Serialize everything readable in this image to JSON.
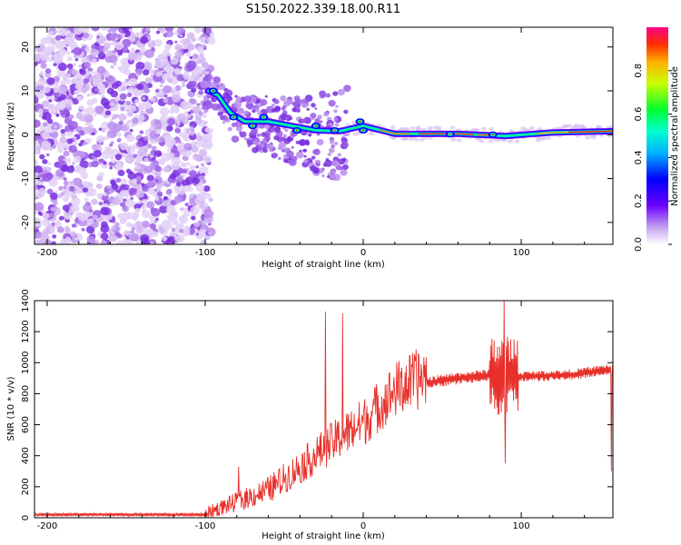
{
  "title": "S150.2022.339.18.00.R11",
  "colors": {
    "snr_line": "#e8302a",
    "scatter_base": "#7a2fe0"
  },
  "chart_data": [
    {
      "type": "heatmap",
      "xlabel": "Height of straight line (km)",
      "ylabel": "Frequency (Hz)",
      "xlim": [
        -208,
        158
      ],
      "ylim": [
        -25,
        24.5
      ],
      "xticks": [
        -200,
        -100,
        0,
        100
      ],
      "yticks": [
        -20,
        -10,
        0,
        10,
        20
      ],
      "colorbar": {
        "label": "Normalized spectral amplitude",
        "range": [
          0,
          1
        ],
        "ticks": [
          "0.0",
          "0.2",
          "0.4",
          "0.6",
          "0.8"
        ],
        "colormap": "rainbow"
      },
      "ridge": [
        {
          "x": -98,
          "y": 10
        },
        {
          "x": -92,
          "y": 9
        },
        {
          "x": -84,
          "y": 5
        },
        {
          "x": -75,
          "y": 3
        },
        {
          "x": -60,
          "y": 3
        },
        {
          "x": -45,
          "y": 2
        },
        {
          "x": -30,
          "y": 1
        },
        {
          "x": -15,
          "y": 0.8
        },
        {
          "x": 0,
          "y": 2
        },
        {
          "x": 20,
          "y": 0.2
        },
        {
          "x": 60,
          "y": 0.2
        },
        {
          "x": 90,
          "y": -0.3
        },
        {
          "x": 120,
          "y": 0.5
        },
        {
          "x": 158,
          "y": 0.8
        }
      ]
    },
    {
      "type": "line",
      "xlabel": "Height of straight line (km)",
      "ylabel": "SNR (10 * v/v)",
      "xlim": [
        -208,
        158
      ],
      "ylim": [
        0,
        1400
      ],
      "xticks": [
        -200,
        -100,
        0,
        100
      ],
      "yticks": [
        0,
        200,
        400,
        600,
        800,
        1000,
        1200,
        1400
      ],
      "envelope": [
        {
          "x": -208,
          "y": 20
        },
        {
          "x": -100,
          "y": 20
        },
        {
          "x": -82,
          "y": 80
        },
        {
          "x": -60,
          "y": 160
        },
        {
          "x": -40,
          "y": 300
        },
        {
          "x": -20,
          "y": 450
        },
        {
          "x": 0,
          "y": 580
        },
        {
          "x": 20,
          "y": 780
        },
        {
          "x": 40,
          "y": 870
        },
        {
          "x": 60,
          "y": 900
        },
        {
          "x": 80,
          "y": 920
        },
        {
          "x": 100,
          "y": 910
        },
        {
          "x": 130,
          "y": 920
        },
        {
          "x": 158,
          "y": 960
        }
      ],
      "spikes": [
        {
          "x": -79,
          "y": 330
        },
        {
          "x": -24,
          "y": 1330
        },
        {
          "x": -13,
          "y": 1320
        },
        {
          "x": 89,
          "y": 1400
        },
        {
          "x": 90,
          "y": 350
        },
        {
          "x": 157,
          "y": 300
        }
      ]
    }
  ]
}
